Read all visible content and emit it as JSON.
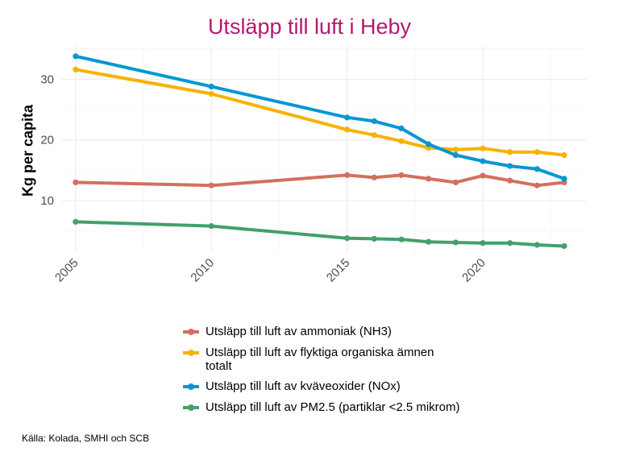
{
  "chart_data": {
    "type": "line",
    "title": "Utsläpp till luft i Heby",
    "xlabel": "",
    "ylabel": "Kg per capita",
    "xlim": [
      2004.5,
      2023.8
    ],
    "ylim": [
      1.5,
      35.5
    ],
    "xticks": [
      2005,
      2010,
      2015,
      2020
    ],
    "yticks": [
      10,
      20,
      30
    ],
    "grid": true,
    "legend_position": "bottom",
    "series": [
      {
        "name": "Utsläpp till luft av ammoniak (NH3)",
        "color": "#d2705e",
        "x": [
          2005,
          2010,
          2015,
          2016,
          2017,
          2018,
          2019,
          2020,
          2021,
          2022,
          2023
        ],
        "values": [
          13.0,
          12.5,
          14.2,
          13.8,
          14.2,
          13.6,
          13.0,
          14.1,
          13.3,
          12.5,
          13.0
        ]
      },
      {
        "name": "Utsläpp till luft av flyktiga organiska ämnen totalt",
        "color": "#f7b200",
        "x": [
          2005,
          2010,
          2015,
          2016,
          2017,
          2018,
          2019,
          2020,
          2021,
          2022,
          2023
        ],
        "values": [
          31.6,
          27.6,
          21.7,
          20.8,
          19.8,
          18.7,
          18.4,
          18.6,
          18.0,
          18.0,
          17.5
        ]
      },
      {
        "name": "Utsläpp till luft av kväveoxider (NOx)",
        "color": "#0797d2",
        "x": [
          2005,
          2010,
          2015,
          2016,
          2017,
          2018,
          2019,
          2020,
          2021,
          2022,
          2023
        ],
        "values": [
          33.8,
          28.8,
          23.7,
          23.1,
          21.9,
          19.3,
          17.5,
          16.5,
          15.7,
          15.2,
          13.6
        ]
      },
      {
        "name": "Utsläpp till luft av PM2.5 (partiklar <2.5 mikrom)",
        "color": "#43a06c",
        "x": [
          2005,
          2010,
          2015,
          2016,
          2017,
          2018,
          2019,
          2020,
          2021,
          2022,
          2023
        ],
        "values": [
          6.5,
          5.8,
          3.8,
          3.7,
          3.6,
          3.2,
          3.1,
          3.0,
          3.0,
          2.7,
          2.5
        ]
      }
    ]
  },
  "legend": {
    "items": [
      {
        "label": "Utsläpp till luft av ammoniak (NH3)",
        "color": "#d2705e"
      },
      {
        "label": "Utsläpp till luft av flyktiga organiska ämnen totalt",
        "color": "#f7b200"
      },
      {
        "label": "Utsläpp till luft av kväveoxider (NOx)",
        "color": "#0797d2"
      },
      {
        "label": "Utsläpp till luft av PM2.5 (partiklar <2.5 mikrom)",
        "color": "#43a06c"
      }
    ]
  },
  "source": "Källa: Kolada, SMHI och SCB"
}
